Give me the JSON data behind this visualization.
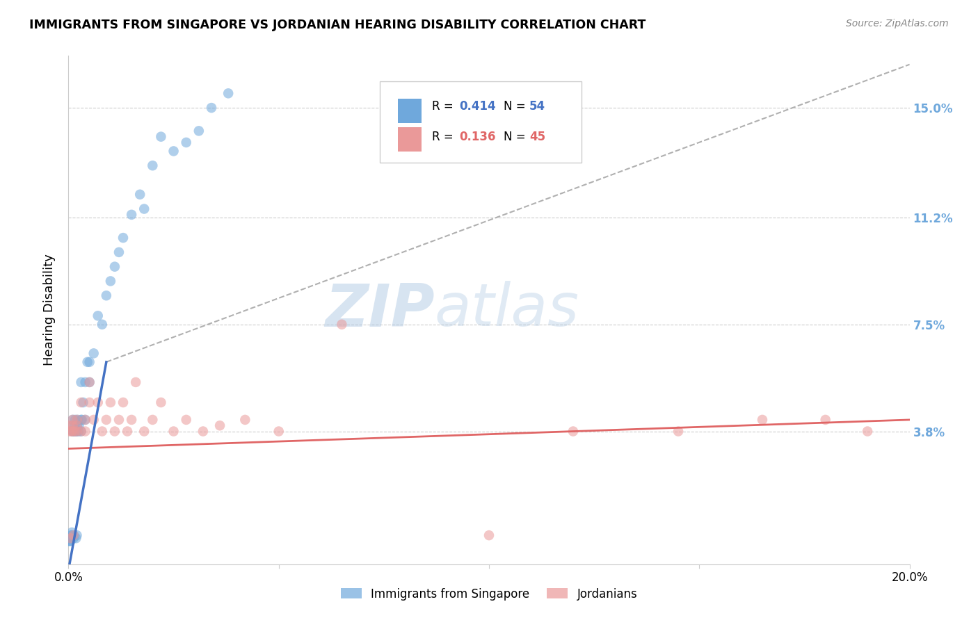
{
  "title": "IMMIGRANTS FROM SINGAPORE VS JORDANIAN HEARING DISABILITY CORRELATION CHART",
  "source": "Source: ZipAtlas.com",
  "ylabel": "Hearing Disability",
  "ytick_labels": [
    "15.0%",
    "11.2%",
    "7.5%",
    "3.8%"
  ],
  "ytick_values": [
    0.15,
    0.112,
    0.075,
    0.038
  ],
  "xlim": [
    0.0,
    0.2
  ],
  "ylim": [
    -0.008,
    0.168
  ],
  "color_blue": "#6fa8dc",
  "color_pink": "#ea9999",
  "color_blue_line": "#4472c4",
  "color_pink_line": "#e06666",
  "color_right_axis": "#6fa8dc",
  "singapore_x": [
    0.0002,
    0.0003,
    0.0004,
    0.0005,
    0.0005,
    0.0006,
    0.0007,
    0.0008,
    0.0009,
    0.001,
    0.001,
    0.001,
    0.001,
    0.0012,
    0.0013,
    0.0014,
    0.0015,
    0.0016,
    0.0017,
    0.0018,
    0.002,
    0.002,
    0.002,
    0.0022,
    0.0024,
    0.0025,
    0.003,
    0.003,
    0.003,
    0.0032,
    0.0035,
    0.004,
    0.004,
    0.0045,
    0.005,
    0.005,
    0.006,
    0.007,
    0.008,
    0.009,
    0.01,
    0.011,
    0.012,
    0.013,
    0.015,
    0.017,
    0.018,
    0.02,
    0.022,
    0.025,
    0.028,
    0.031,
    0.034,
    0.038
  ],
  "singapore_y": [
    0.0,
    0.0,
    0.001,
    0.0,
    0.001,
    0.002,
    0.001,
    0.003,
    0.002,
    0.038,
    0.04,
    0.042,
    0.038,
    0.001,
    0.002,
    0.038,
    0.04,
    0.042,
    0.038,
    0.001,
    0.002,
    0.038,
    0.04,
    0.042,
    0.038,
    0.04,
    0.038,
    0.042,
    0.055,
    0.042,
    0.048,
    0.042,
    0.055,
    0.062,
    0.055,
    0.062,
    0.065,
    0.078,
    0.075,
    0.085,
    0.09,
    0.095,
    0.1,
    0.105,
    0.113,
    0.12,
    0.115,
    0.13,
    0.14,
    0.135,
    0.138,
    0.142,
    0.15,
    0.155
  ],
  "jordan_x": [
    0.0002,
    0.0003,
    0.0005,
    0.0007,
    0.001,
    0.001,
    0.001,
    0.0012,
    0.0015,
    0.002,
    0.002,
    0.002,
    0.003,
    0.003,
    0.004,
    0.004,
    0.005,
    0.005,
    0.006,
    0.007,
    0.008,
    0.009,
    0.01,
    0.011,
    0.012,
    0.013,
    0.014,
    0.015,
    0.016,
    0.018,
    0.02,
    0.022,
    0.025,
    0.028,
    0.032,
    0.036,
    0.042,
    0.05,
    0.065,
    0.1,
    0.12,
    0.145,
    0.165,
    0.18,
    0.19
  ],
  "jordan_y": [
    0.038,
    0.04,
    0.001,
    0.038,
    0.038,
    0.04,
    0.042,
    0.002,
    0.038,
    0.038,
    0.04,
    0.042,
    0.038,
    0.048,
    0.038,
    0.042,
    0.048,
    0.055,
    0.042,
    0.048,
    0.038,
    0.042,
    0.048,
    0.038,
    0.042,
    0.048,
    0.038,
    0.042,
    0.055,
    0.038,
    0.042,
    0.048,
    0.038,
    0.042,
    0.038,
    0.04,
    0.042,
    0.038,
    0.075,
    0.002,
    0.038,
    0.038,
    0.042,
    0.042,
    0.038
  ],
  "blue_line_x0": 0.0,
  "blue_line_y0": -0.01,
  "blue_line_x1": 0.009,
  "blue_line_y1": 0.062,
  "dash_line_x0": 0.009,
  "dash_line_y0": 0.062,
  "dash_line_x1": 0.2,
  "dash_line_y1": 0.165,
  "pink_line_x0": 0.0,
  "pink_line_y0": 0.032,
  "pink_line_x1": 0.2,
  "pink_line_y1": 0.042
}
